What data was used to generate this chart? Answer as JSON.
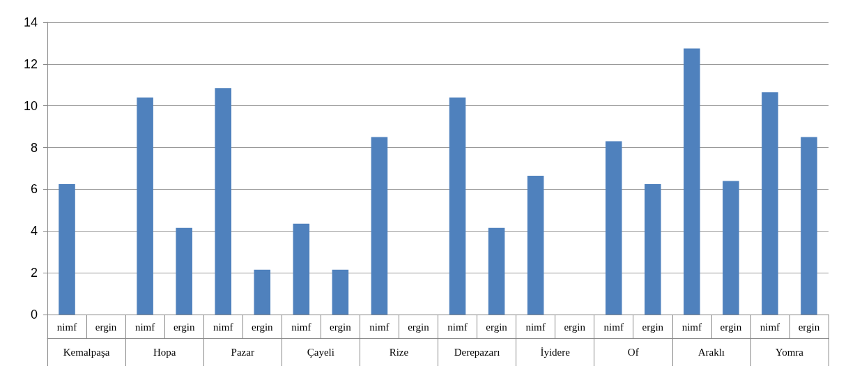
{
  "chart_data": {
    "type": "bar",
    "categories": [
      "nimf",
      "ergin",
      "nimf",
      "ergin",
      "nimf",
      "ergin",
      "nimf",
      "ergin",
      "nimf",
      "ergin",
      "nimf",
      "ergin",
      "nimf",
      "ergin",
      "nimf",
      "ergin",
      "nimf",
      "ergin",
      "nimf",
      "ergin"
    ],
    "values": [
      6.25,
      0,
      10.4,
      4.15,
      10.85,
      2.15,
      4.35,
      2.15,
      8.5,
      0,
      10.4,
      4.15,
      6.65,
      0,
      8.3,
      6.25,
      12.75,
      6.4,
      10.65,
      8.5
    ],
    "color": "#4f81bd",
    "annotations": [
      "Kemalpaşa",
      "Hopa",
      "Pazar",
      "Çayeli",
      "Rize",
      "Derepazarı",
      "İyidere",
      "Of",
      "Araklı",
      "Yomra"
    ],
    "ylim": [
      0,
      14
    ],
    "yticks": [
      0,
      2,
      4,
      6,
      8,
      10,
      12,
      14
    ],
    "grid": "y"
  }
}
